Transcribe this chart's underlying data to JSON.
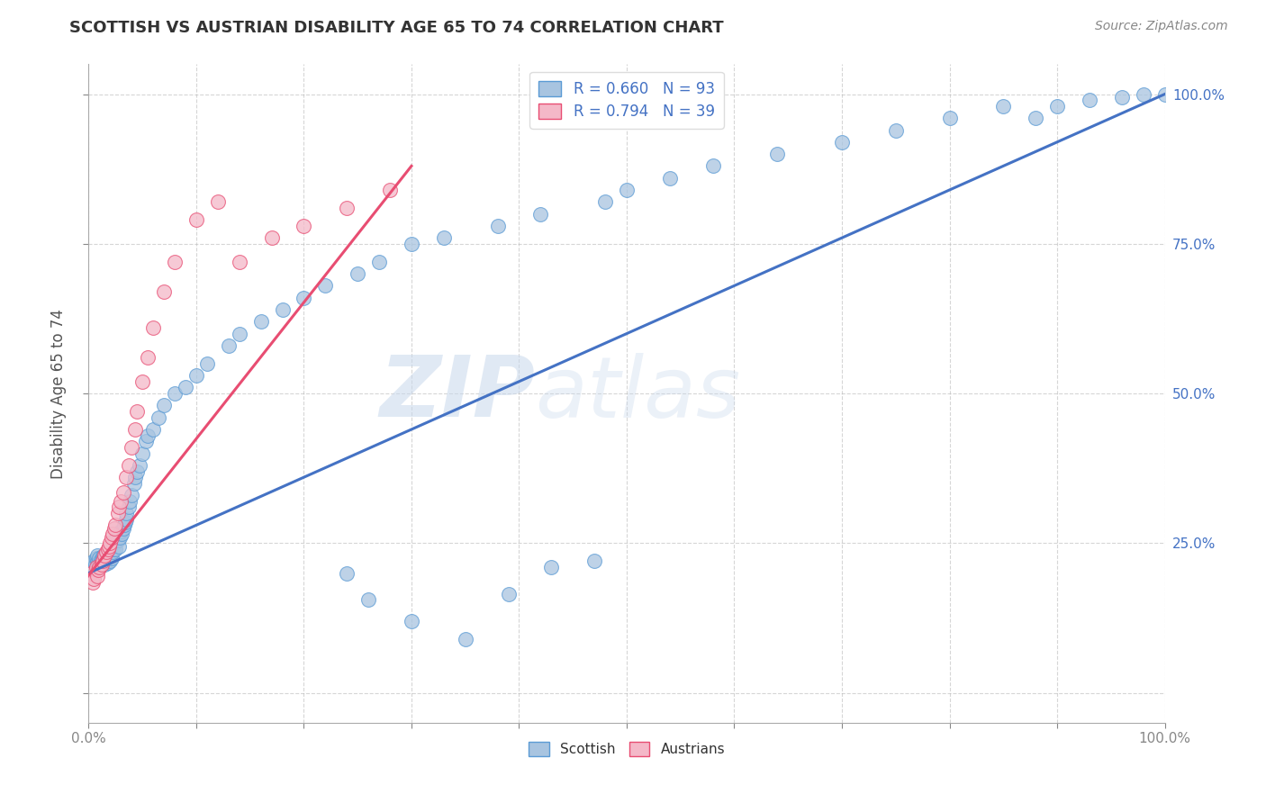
{
  "title": "SCOTTISH VS AUSTRIAN DISABILITY AGE 65 TO 74 CORRELATION CHART",
  "source": "Source: ZipAtlas.com",
  "ylabel": "Disability Age 65 to 74",
  "legend_entries": [
    {
      "label": "Scottish",
      "color": "#a8c4e0",
      "edge": "#5b9bd5",
      "R": 0.66,
      "N": 93
    },
    {
      "label": "Austrians",
      "color": "#f4b8c8",
      "edge": "#e84d72",
      "R": 0.794,
      "N": 39
    }
  ],
  "scottish_line_color": "#4472c4",
  "austrian_line_color": "#e84d72",
  "background_color": "#ffffff",
  "grid_color": "#bbbbbb",
  "watermark_zip": "ZIP",
  "watermark_atlas": "atlas",
  "xlim": [
    0.0,
    1.0
  ],
  "ylim": [
    -0.05,
    1.05
  ],
  "scottish_x": [
    0.003,
    0.005,
    0.006,
    0.007,
    0.008,
    0.008,
    0.009,
    0.01,
    0.01,
    0.011,
    0.012,
    0.013,
    0.013,
    0.014,
    0.015,
    0.015,
    0.016,
    0.017,
    0.018,
    0.018,
    0.019,
    0.02,
    0.02,
    0.021,
    0.022,
    0.022,
    0.023,
    0.024,
    0.025,
    0.025,
    0.026,
    0.027,
    0.028,
    0.028,
    0.029,
    0.03,
    0.031,
    0.032,
    0.033,
    0.034,
    0.035,
    0.035,
    0.037,
    0.038,
    0.04,
    0.042,
    0.043,
    0.045,
    0.047,
    0.05,
    0.053,
    0.055,
    0.06,
    0.065,
    0.07,
    0.08,
    0.09,
    0.1,
    0.11,
    0.13,
    0.14,
    0.16,
    0.18,
    0.2,
    0.22,
    0.25,
    0.27,
    0.3,
    0.33,
    0.38,
    0.42,
    0.48,
    0.5,
    0.54,
    0.58,
    0.64,
    0.7,
    0.75,
    0.8,
    0.85,
    0.88,
    0.9,
    0.93,
    0.96,
    0.98,
    1.0,
    0.24,
    0.26,
    0.3,
    0.35,
    0.39,
    0.43,
    0.47
  ],
  "scottish_y": [
    0.215,
    0.22,
    0.215,
    0.225,
    0.22,
    0.23,
    0.218,
    0.215,
    0.225,
    0.222,
    0.22,
    0.218,
    0.228,
    0.23,
    0.215,
    0.225,
    0.22,
    0.225,
    0.23,
    0.218,
    0.235,
    0.22,
    0.23,
    0.225,
    0.235,
    0.245,
    0.24,
    0.25,
    0.24,
    0.255,
    0.26,
    0.255,
    0.265,
    0.245,
    0.26,
    0.27,
    0.265,
    0.275,
    0.28,
    0.285,
    0.29,
    0.3,
    0.31,
    0.32,
    0.33,
    0.35,
    0.36,
    0.37,
    0.38,
    0.4,
    0.42,
    0.43,
    0.44,
    0.46,
    0.48,
    0.5,
    0.51,
    0.53,
    0.55,
    0.58,
    0.6,
    0.62,
    0.64,
    0.66,
    0.68,
    0.7,
    0.72,
    0.75,
    0.76,
    0.78,
    0.8,
    0.82,
    0.84,
    0.86,
    0.88,
    0.9,
    0.92,
    0.94,
    0.96,
    0.98,
    0.96,
    0.98,
    0.99,
    0.995,
    1.0,
    1.0,
    0.2,
    0.155,
    0.12,
    0.09,
    0.165,
    0.21,
    0.22
  ],
  "austrian_x": [
    0.002,
    0.004,
    0.005,
    0.007,
    0.008,
    0.009,
    0.01,
    0.012,
    0.013,
    0.015,
    0.016,
    0.018,
    0.019,
    0.02,
    0.021,
    0.022,
    0.024,
    0.025,
    0.027,
    0.028,
    0.03,
    0.032,
    0.035,
    0.037,
    0.04,
    0.043,
    0.045,
    0.05,
    0.055,
    0.06,
    0.07,
    0.08,
    0.1,
    0.12,
    0.14,
    0.17,
    0.2,
    0.24,
    0.28
  ],
  "austrian_y": [
    0.2,
    0.185,
    0.19,
    0.21,
    0.195,
    0.205,
    0.21,
    0.215,
    0.22,
    0.23,
    0.235,
    0.24,
    0.245,
    0.25,
    0.26,
    0.265,
    0.275,
    0.28,
    0.3,
    0.31,
    0.32,
    0.335,
    0.36,
    0.38,
    0.41,
    0.44,
    0.47,
    0.52,
    0.56,
    0.61,
    0.67,
    0.72,
    0.79,
    0.82,
    0.72,
    0.76,
    0.78,
    0.81,
    0.84
  ],
  "scot_line_x0": 0.0,
  "scot_line_y0": 0.2,
  "scot_line_x1": 1.0,
  "scot_line_y1": 1.0,
  "aust_line_x0": -0.005,
  "aust_line_y0": 0.185,
  "aust_line_x1": 0.3,
  "aust_line_y1": 0.88
}
